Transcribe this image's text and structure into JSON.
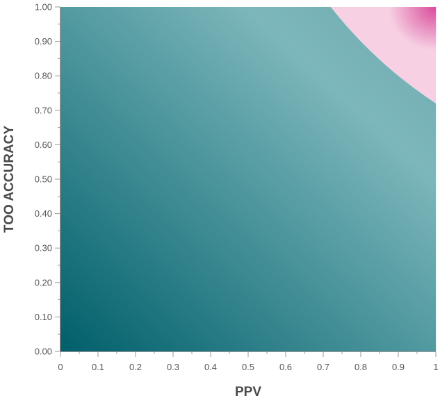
{
  "chart_data": {
    "type": "heatmap",
    "title": "",
    "xlabel": "PPV",
    "ylabel": "TOO ACCURACY",
    "xlim": [
      0,
      1
    ],
    "ylim": [
      0,
      1
    ],
    "x_ticks": [
      "0",
      "0.1",
      "0.2",
      "0.3",
      "0.4",
      "0.5",
      "0.6",
      "0.7",
      "0.8",
      "0.9",
      "1"
    ],
    "y_ticks": [
      "0.00",
      "0.10",
      "0.20",
      "0.30",
      "0.40",
      "0.50",
      "0.60",
      "0.70",
      "0.80",
      "0.90",
      "1.00"
    ],
    "regions": [
      {
        "color_low": "#005f6b",
        "color_high": "#7cb7bb",
        "description_ref": "product below threshold"
      },
      {
        "color_low": "#f7d0e3",
        "color_high": "#d94a9a",
        "threshold_product": 0.72,
        "description_ref": "product above threshold"
      }
    ],
    "boundary": {
      "x_start": 0.72,
      "y_at_x1": 0.72
    },
    "grid": false
  }
}
